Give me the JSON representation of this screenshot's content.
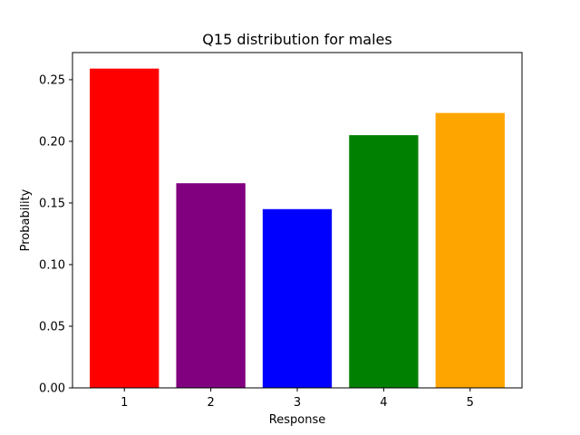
{
  "chart_data": {
    "type": "bar",
    "title": "Q15 distribution for males",
    "xlabel": "Response",
    "ylabel": "Probability",
    "categories": [
      "1",
      "2",
      "3",
      "4",
      "5"
    ],
    "values": [
      0.259,
      0.166,
      0.145,
      0.205,
      0.223
    ],
    "colors": [
      "#ff0000",
      "#800080",
      "#0000ff",
      "#008000",
      "#ffa500"
    ],
    "ylim": [
      0,
      0.272
    ],
    "yticks": [
      0.0,
      0.05,
      0.1,
      0.15,
      0.2,
      0.25
    ],
    "ytick_labels": [
      "0.00",
      "0.05",
      "0.10",
      "0.15",
      "0.20",
      "0.25"
    ],
    "grid": false,
    "legend": false
  }
}
